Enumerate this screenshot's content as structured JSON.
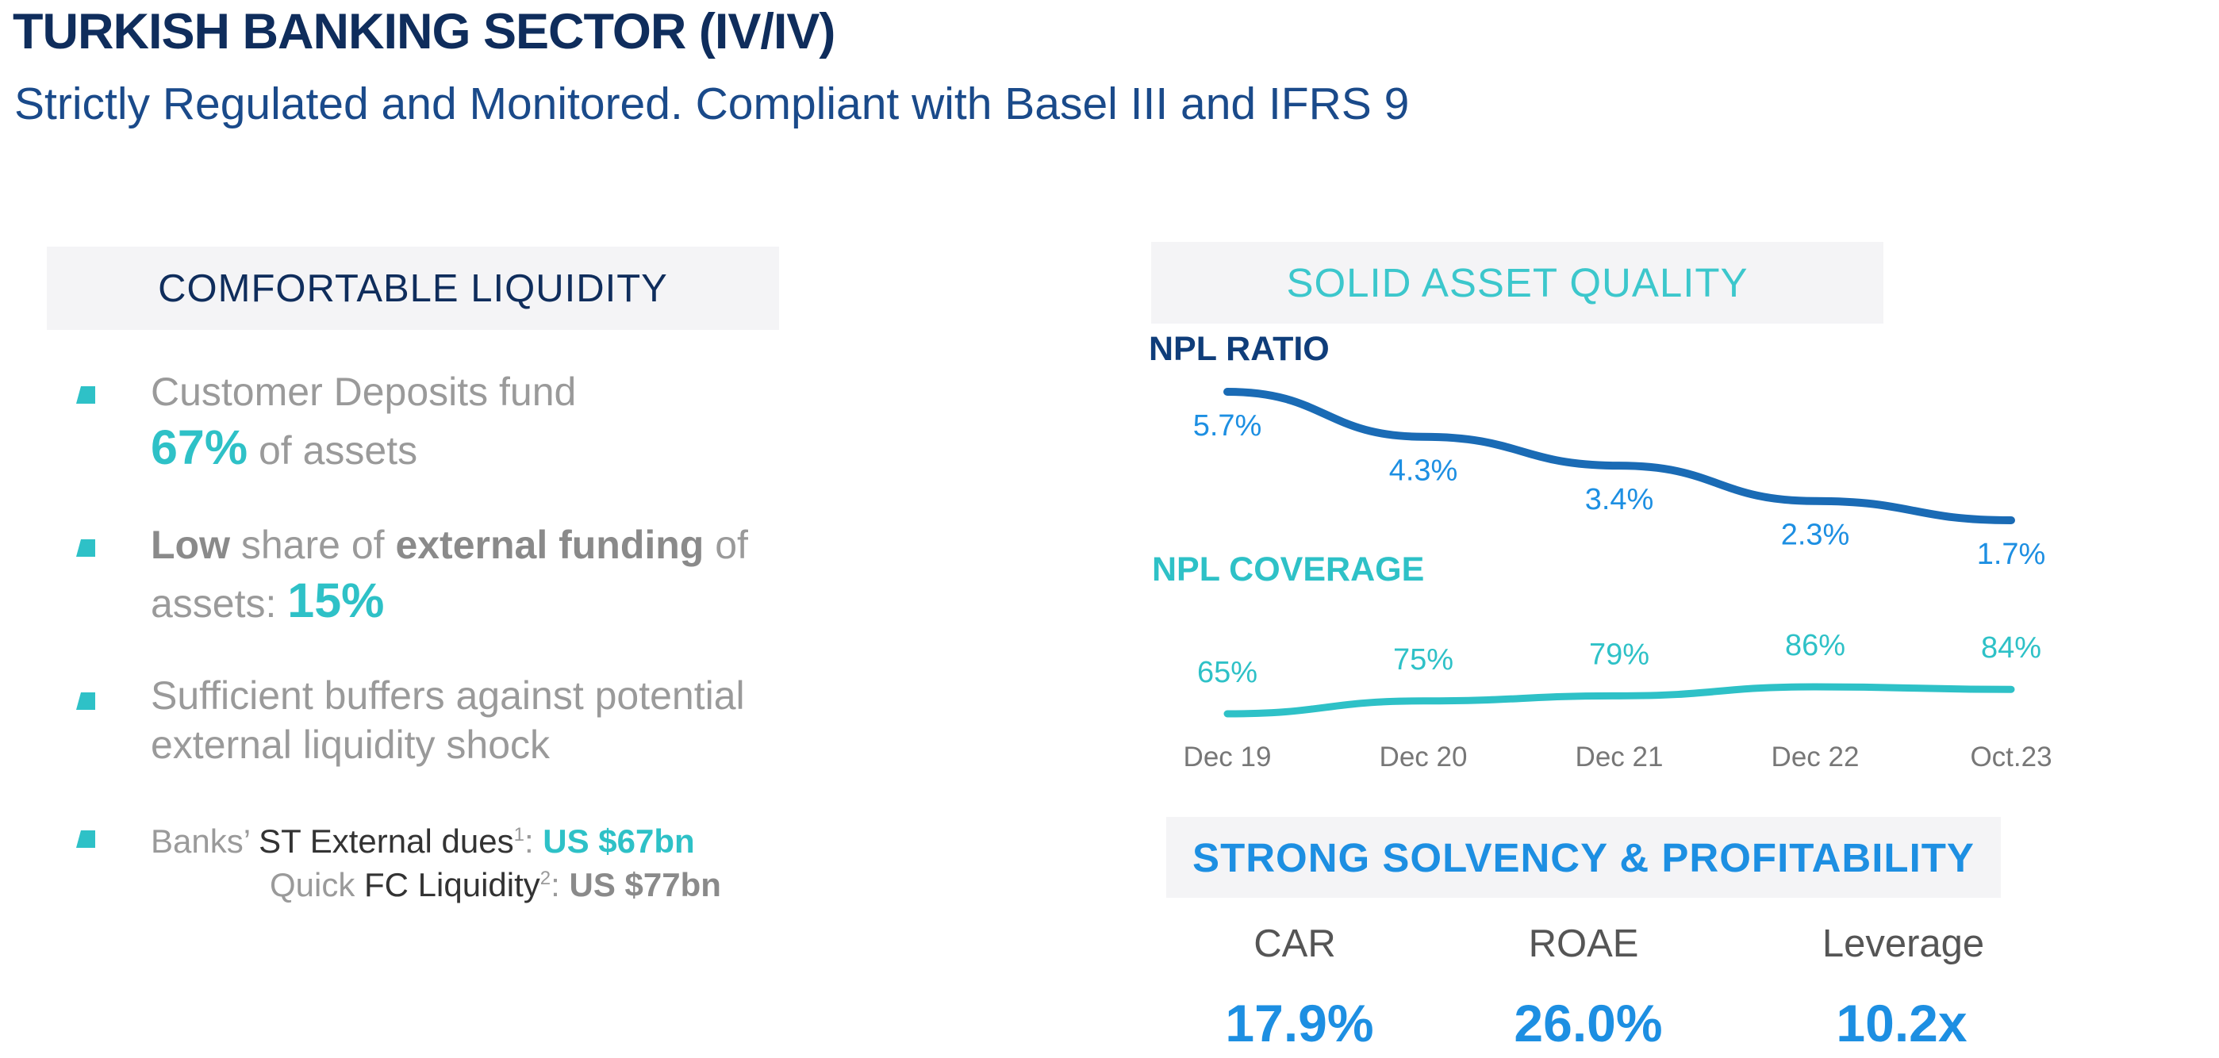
{
  "header": {
    "title": "TURKISH BANKING SECTOR (IV/IV)",
    "subtitle": "Strictly Regulated and Monitored. Compliant with Basel III and IFRS 9"
  },
  "liquidity": {
    "heading": "COMFORTABLE LIQUIDITY",
    "bullet1": {
      "line1": "Customer Deposits fund",
      "highlight": "67%",
      "rest": " of assets"
    },
    "bullet2": {
      "b1": "Low",
      "t1": " share of ",
      "b2": "external funding",
      "t2": " of",
      "t3": "assets: ",
      "highlight": "15%"
    },
    "bullet3": {
      "line1": "Sufficient buffers against potential",
      "line2": "external liquidity  shock"
    },
    "bullet4": {
      "l1_grey": "Banks’ ",
      "l1_dark": "ST External dues",
      "l1_sup": "1",
      "l1_colon": ": ",
      "l1_value": "US $67bn",
      "l2_grey": "Quick ",
      "l2_dark": "FC Liquidity",
      "l2_sup": "2",
      "l2_colon": ": ",
      "l2_value": "US $77bn"
    }
  },
  "asset_quality": {
    "heading": "SOLID ASSET QUALITY"
  },
  "chart_data": {
    "type": "line",
    "categories": [
      "Dec 19",
      "Dec 20",
      "Dec 21",
      "Dec 22",
      "Oct.23"
    ],
    "series": [
      {
        "name": "NPL RATIO",
        "values": [
          5.7,
          4.3,
          3.4,
          2.3,
          1.7
        ],
        "labels": [
          "5.7%",
          "4.3%",
          "3.4%",
          "2.3%",
          "1.7%"
        ],
        "color": "#1a6bb5"
      },
      {
        "name": "NPL COVERAGE",
        "values": [
          65,
          75,
          79,
          86,
          84
        ],
        "labels": [
          "65%",
          "75%",
          "79%",
          "86%",
          "84%"
        ],
        "color": "#2ec1c7"
      }
    ],
    "grid": false,
    "legend": "inline labels above each series"
  },
  "solvency": {
    "heading": "STRONG SOLVENCY & PROFITABILITY",
    "kpis": [
      {
        "label": "CAR",
        "value": "17.9%"
      },
      {
        "label": "ROAE",
        "value": "26.0%"
      },
      {
        "label": "Leverage",
        "value": "10.2x"
      }
    ]
  },
  "colors": {
    "navy": "#0f2d5c",
    "teal": "#2ec1c7",
    "blue": "#1d8fe2",
    "npl_line": "#1a6bb5"
  }
}
